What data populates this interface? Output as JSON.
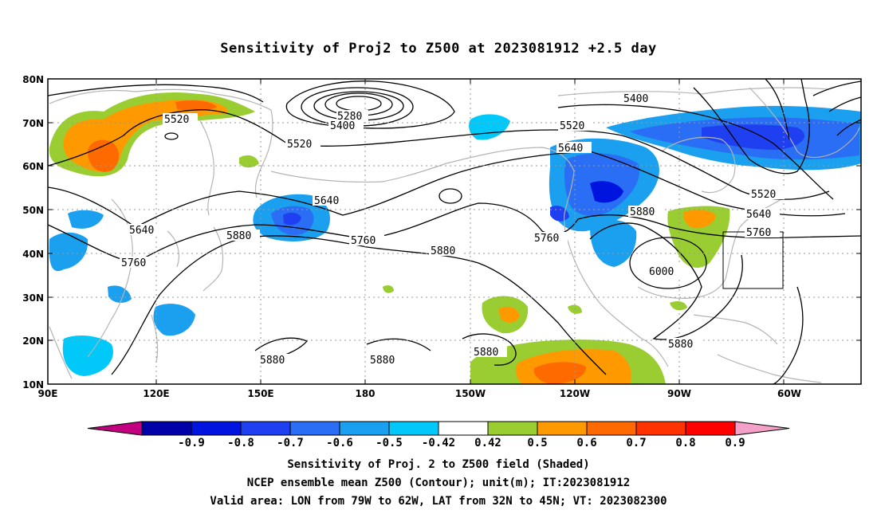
{
  "title": "Sensitivity of Proj2 to Z500 at 2023081912 +2.5 day",
  "lat_labels": [
    "80N",
    "70N",
    "60N",
    "50N",
    "40N",
    "30N",
    "20N",
    "10N"
  ],
  "lon_labels": [
    "90E",
    "120E",
    "150E",
    "180",
    "150W",
    "120W",
    "90W",
    "60W"
  ],
  "contour_labels": [
    "5280",
    "5400",
    "5520",
    "5640",
    "5760",
    "5880",
    "6000"
  ],
  "colorbar": {
    "labels": [
      "-0.9",
      "-0.8",
      "-0.7",
      "-0.6",
      "-0.5",
      "-0.42",
      "0.42",
      "0.5",
      "0.6",
      "0.7",
      "0.8",
      "0.9"
    ],
    "colors": [
      "#c2007f",
      "#0000a8",
      "#0014e0",
      "#1f40f0",
      "#2a6ef5",
      "#1aa0ee",
      "#00c8f8",
      "#ffffff",
      "#9acd32",
      "#ff9900",
      "#ff6a00",
      "#ff3300",
      "#ff0000",
      "#f4a0c8"
    ]
  },
  "captions": [
    "Sensitivity of Proj. 2 to Z500 field (Shaded)",
    "NCEP ensemble mean Z500 (Contour); unit(m); IT:2023081912",
    "Valid area: LON from 79W to 62W, LAT from 32N to 45N; VT: 2023082300"
  ]
}
